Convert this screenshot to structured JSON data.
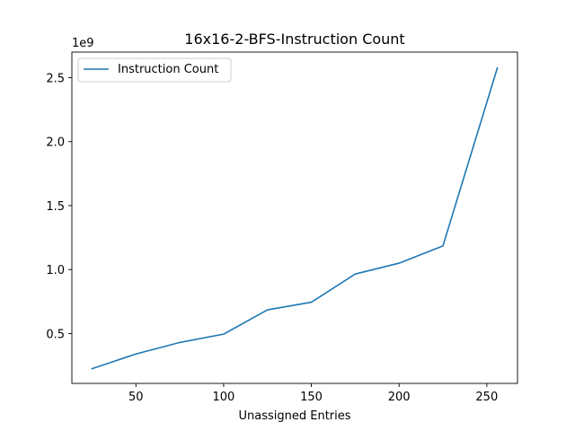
{
  "chart_data": {
    "type": "line",
    "title": "16x16-2-BFS-Instruction Count",
    "xlabel": "Unassigned Entries",
    "ylabel": "",
    "y_offset_label": "1e9",
    "xlim": [
      13.5,
      267.5
    ],
    "ylim": [
      110000000,
      2700000000
    ],
    "x_ticks": [
      50,
      100,
      150,
      200,
      250
    ],
    "x_tick_labels": [
      "50",
      "100",
      "150",
      "200",
      "250"
    ],
    "y_ticks": [
      500000000,
      1000000000,
      1500000000,
      2000000000,
      2500000000
    ],
    "y_tick_labels": [
      "0.5",
      "1.0",
      "1.5",
      "2.0",
      "2.5"
    ],
    "grid": false,
    "legend_position": "upper-left",
    "series": [
      {
        "name": "Instruction Count",
        "color": "#1f77b4",
        "x": [
          25,
          50,
          75,
          100,
          125,
          150,
          175,
          200,
          225,
          256
        ],
        "y": [
          225000000,
          340000000,
          430000000,
          495000000,
          685000000,
          745000000,
          965000000,
          1050000000,
          1185000000,
          2575000000
        ]
      }
    ]
  }
}
